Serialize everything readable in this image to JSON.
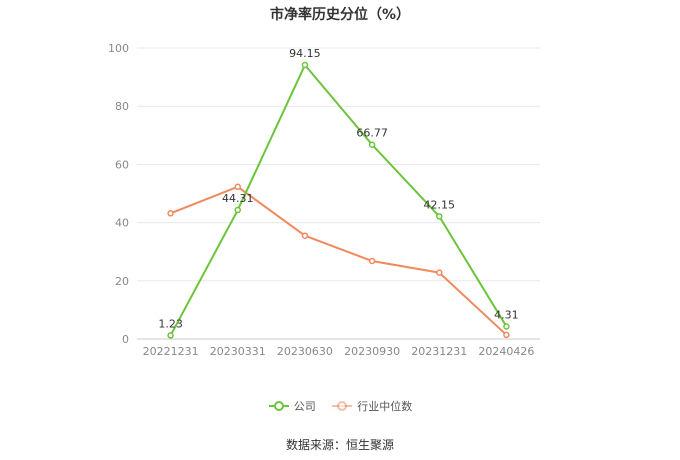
{
  "title": "市净率历史分位（%）",
  "source": "数据来源：恒生聚源",
  "chart_data": {
    "type": "line",
    "title": "市净率历史分位（%）",
    "categories": [
      "20221231",
      "20230331",
      "20230630",
      "20230930",
      "20231231",
      "20240426"
    ],
    "ylim": [
      0,
      100
    ],
    "yticks": [
      0,
      20,
      40,
      60,
      80,
      100
    ],
    "grid": true,
    "legend_position": "bottom",
    "series": [
      {
        "name": "公司",
        "color": "#6cc43a",
        "values": [
          1.23,
          44.31,
          94.15,
          66.77,
          42.15,
          4.31
        ],
        "labels": [
          "1.23",
          "44.31",
          "94.15",
          "66.77",
          "42.15",
          "4.31"
        ]
      },
      {
        "name": "行业中位数",
        "color": "#f0895e",
        "values": [
          43.2,
          52.3,
          35.5,
          26.8,
          22.8,
          1.4
        ]
      }
    ]
  }
}
